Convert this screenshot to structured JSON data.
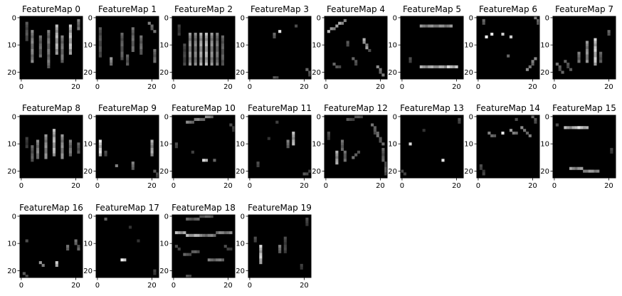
{
  "chart_data": {
    "type": "heatmap",
    "grid": false,
    "colormap": "gray",
    "xlim": [
      0,
      22
    ],
    "ylim": [
      0,
      22
    ],
    "x_ticks": [
      0,
      20
    ],
    "y_ticks": [
      0,
      10,
      20
    ],
    "panels": [
      {
        "title": "FeatureMap 0",
        "strokes": [
          [
            4,
            5,
            4,
            16,
            0.55
          ],
          [
            7,
            7,
            7,
            14,
            0.45
          ],
          [
            10,
            5,
            10,
            18,
            0.5
          ],
          [
            13,
            3,
            13,
            13,
            0.75
          ],
          [
            15,
            7,
            15,
            16,
            0.5
          ],
          [
            18,
            3,
            18,
            13,
            0.8
          ],
          [
            21,
            1,
            21,
            4,
            0.5
          ],
          [
            2,
            2,
            2,
            8,
            0.35
          ]
        ]
      },
      {
        "title": "FeatureMap 1",
        "strokes": [
          [
            1,
            4,
            1,
            14,
            0.35
          ],
          [
            5,
            15,
            5,
            17,
            0.6
          ],
          [
            9,
            6,
            9,
            15,
            0.4
          ],
          [
            13,
            4,
            13,
            12,
            0.45
          ],
          [
            16,
            7,
            16,
            13,
            0.45
          ],
          [
            19,
            2,
            21,
            5,
            0.5
          ],
          [
            21,
            12,
            21,
            16,
            0.45
          ],
          [
            11,
            14,
            11,
            17,
            0.4
          ]
        ]
      },
      {
        "title": "FeatureMap 2",
        "strokes": [
          [
            4,
            10,
            4,
            17,
            0.3
          ],
          [
            6,
            6,
            6,
            17,
            0.6
          ],
          [
            8,
            6,
            8,
            17,
            0.55
          ],
          [
            10,
            6,
            10,
            17,
            0.7
          ],
          [
            12,
            6,
            12,
            17,
            0.75
          ],
          [
            14,
            6,
            14,
            17,
            0.6
          ],
          [
            16,
            6,
            16,
            17,
            0.5
          ],
          [
            18,
            7,
            18,
            17,
            0.4
          ],
          [
            2,
            3,
            2,
            6,
            0.25
          ]
        ]
      },
      {
        "title": "FeatureMap 3",
        "strokes": [
          [
            11,
            5,
            11,
            5,
            0.9
          ],
          [
            9,
            6,
            9,
            7,
            0.4
          ],
          [
            21,
            19,
            22,
            21,
            0.4
          ],
          [
            9,
            22,
            10,
            22,
            0.35
          ],
          [
            17,
            3,
            17,
            3,
            0.3
          ]
        ]
      },
      {
        "title": "FeatureMap 4",
        "strokes": [
          [
            1,
            5,
            7,
            1,
            0.7
          ],
          [
            14,
            8,
            15,
            11,
            0.7
          ],
          [
            10,
            15,
            11,
            17,
            0.4
          ],
          [
            3,
            17,
            5,
            18,
            0.4
          ],
          [
            19,
            18,
            21,
            21,
            0.55
          ],
          [
            16,
            12,
            16,
            12,
            0.3
          ],
          [
            8,
            9,
            8,
            10,
            0.35
          ]
        ]
      },
      {
        "title": "FeatureMap 5",
        "strokes": [
          [
            7,
            3,
            18,
            3,
            0.6
          ],
          [
            7,
            18,
            19,
            18,
            0.7
          ],
          [
            3,
            15,
            3,
            16,
            0.3
          ],
          [
            17,
            18,
            20,
            18,
            0.85
          ]
        ]
      },
      {
        "title": "FeatureMap 6",
        "strokes": [
          [
            3,
            7,
            3,
            7,
            0.95
          ],
          [
            5,
            6,
            5,
            6,
            0.9
          ],
          [
            9,
            6,
            9,
            6,
            0.8
          ],
          [
            12,
            7,
            12,
            7,
            0.8
          ],
          [
            2,
            1,
            2,
            2,
            0.4
          ],
          [
            21,
            0,
            22,
            2,
            0.5
          ],
          [
            18,
            19,
            21,
            15,
            0.55
          ],
          [
            11,
            14,
            11,
            14,
            0.4
          ]
        ]
      },
      {
        "title": "FeatureMap 7",
        "strokes": [
          [
            12,
            9,
            12,
            16,
            0.6
          ],
          [
            15,
            8,
            15,
            17,
            0.85
          ],
          [
            9,
            13,
            9,
            16,
            0.5
          ],
          [
            1,
            17,
            3,
            20,
            0.45
          ],
          [
            4,
            16,
            6,
            19,
            0.4
          ],
          [
            20,
            5,
            20,
            6,
            0.4
          ],
          [
            17,
            13,
            17,
            16,
            0.4
          ]
        ]
      },
      {
        "title": "FeatureMap 8",
        "strokes": [
          [
            4,
            11,
            4,
            16,
            0.4
          ],
          [
            6,
            9,
            6,
            15,
            0.55
          ],
          [
            9,
            7,
            9,
            15,
            0.6
          ],
          [
            12,
            5,
            12,
            14,
            0.75
          ],
          [
            15,
            7,
            15,
            15,
            0.6
          ],
          [
            18,
            9,
            18,
            14,
            0.5
          ],
          [
            21,
            10,
            21,
            13,
            0.4
          ],
          [
            2,
            8,
            2,
            11,
            0.25
          ]
        ]
      },
      {
        "title": "FeatureMap 9",
        "strokes": [
          [
            1,
            9,
            1,
            14,
            0.9
          ],
          [
            20,
            9,
            20,
            14,
            0.7
          ],
          [
            7,
            18,
            7,
            18,
            0.5
          ],
          [
            13,
            17,
            13,
            19,
            0.5
          ],
          [
            21,
            20,
            22,
            22,
            0.35
          ],
          [
            3,
            13,
            3,
            14,
            0.3
          ]
        ]
      },
      {
        "title": "FeatureMap 10",
        "strokes": [
          [
            5,
            2,
            14,
            0,
            0.55
          ],
          [
            11,
            16,
            12,
            16,
            0.85
          ],
          [
            15,
            16,
            15,
            16,
            0.4
          ],
          [
            1,
            10,
            1,
            11,
            0.3
          ],
          [
            21,
            3,
            22,
            5,
            0.3
          ],
          [
            7,
            13,
            7,
            13,
            0.25
          ]
        ]
      },
      {
        "title": "FeatureMap 11",
        "strokes": [
          [
            16,
            6,
            16,
            10,
            0.75
          ],
          [
            14,
            9,
            14,
            11,
            0.5
          ],
          [
            20,
            21,
            22,
            20,
            0.35
          ],
          [
            3,
            17,
            3,
            18,
            0.3
          ],
          [
            10,
            2,
            10,
            2,
            0.25
          ],
          [
            7,
            8,
            7,
            8,
            0.2
          ]
        ]
      },
      {
        "title": "FeatureMap 12",
        "strokes": [
          [
            4,
            13,
            4,
            17,
            0.7
          ],
          [
            6,
            9,
            7,
            16,
            0.45
          ],
          [
            10,
            15,
            12,
            13,
            0.45
          ],
          [
            17,
            3,
            21,
            10,
            0.45
          ],
          [
            21,
            12,
            22,
            21,
            0.4
          ],
          [
            8,
            1,
            13,
            0,
            0.35
          ],
          [
            1,
            6,
            1,
            8,
            0.3
          ],
          [
            18,
            5,
            18,
            6,
            0.35
          ]
        ]
      },
      {
        "title": "FeatureMap 13",
        "strokes": [
          [
            3,
            10,
            3,
            10,
            0.85
          ],
          [
            15,
            16,
            15,
            16,
            0.9
          ],
          [
            0,
            20,
            1,
            21,
            0.3
          ],
          [
            21,
            1,
            21,
            2,
            0.3
          ],
          [
            8,
            5,
            8,
            5,
            0.2
          ]
        ]
      },
      {
        "title": "FeatureMap 14",
        "strokes": [
          [
            9,
            6,
            9,
            6,
            0.9
          ],
          [
            12,
            5,
            14,
            6,
            0.6
          ],
          [
            16,
            4,
            19,
            7,
            0.55
          ],
          [
            4,
            6,
            6,
            7,
            0.5
          ],
          [
            20,
            0,
            21,
            2,
            0.4
          ],
          [
            1,
            18,
            2,
            21,
            0.3
          ],
          [
            14,
            1,
            14,
            1,
            0.3
          ]
        ]
      },
      {
        "title": "FeatureMap 15",
        "strokes": [
          [
            4,
            4,
            12,
            4,
            0.75
          ],
          [
            9,
            4,
            11,
            4,
            0.9
          ],
          [
            6,
            19,
            16,
            20,
            0.65
          ],
          [
            1,
            3,
            1,
            3,
            0.3
          ],
          [
            21,
            12,
            21,
            13,
            0.25
          ]
        ]
      },
      {
        "title": "FeatureMap 16",
        "strokes": [
          [
            7,
            17,
            8,
            18,
            0.6
          ],
          [
            13,
            17,
            13,
            18,
            0.8
          ],
          [
            17,
            11,
            17,
            12,
            0.45
          ],
          [
            20,
            9,
            21,
            12,
            0.45
          ],
          [
            2,
            9,
            2,
            9,
            0.3
          ],
          [
            1,
            21,
            2,
            22,
            0.35
          ]
        ]
      },
      {
        "title": "FeatureMap 17",
        "strokes": [
          [
            9,
            16,
            10,
            16,
            0.95
          ],
          [
            3,
            1,
            3,
            1,
            0.4
          ],
          [
            12,
            4,
            12,
            4,
            0.2
          ],
          [
            21,
            20,
            21,
            21,
            0.25
          ],
          [
            15,
            9,
            15,
            9,
            0.2
          ]
        ]
      },
      {
        "title": "FeatureMap 18",
        "strokes": [
          [
            1,
            6,
            9,
            7,
            0.75
          ],
          [
            10,
            7,
            21,
            6,
            0.55
          ],
          [
            5,
            1,
            14,
            0,
            0.4
          ],
          [
            4,
            14,
            9,
            13,
            0.4
          ],
          [
            13,
            16,
            18,
            16,
            0.5
          ],
          [
            1,
            11,
            2,
            12,
            0.3
          ],
          [
            19,
            11,
            21,
            12,
            0.3
          ],
          [
            5,
            22,
            6,
            22,
            0.35
          ]
        ]
      },
      {
        "title": "FeatureMap 19",
        "strokes": [
          [
            4,
            11,
            4,
            17,
            0.85
          ],
          [
            11,
            11,
            11,
            13,
            0.5
          ],
          [
            13,
            8,
            13,
            13,
            0.3
          ],
          [
            21,
            1,
            21,
            3,
            0.3
          ],
          [
            2,
            8,
            2,
            9,
            0.3
          ],
          [
            19,
            18,
            19,
            19,
            0.25
          ]
        ]
      }
    ]
  }
}
